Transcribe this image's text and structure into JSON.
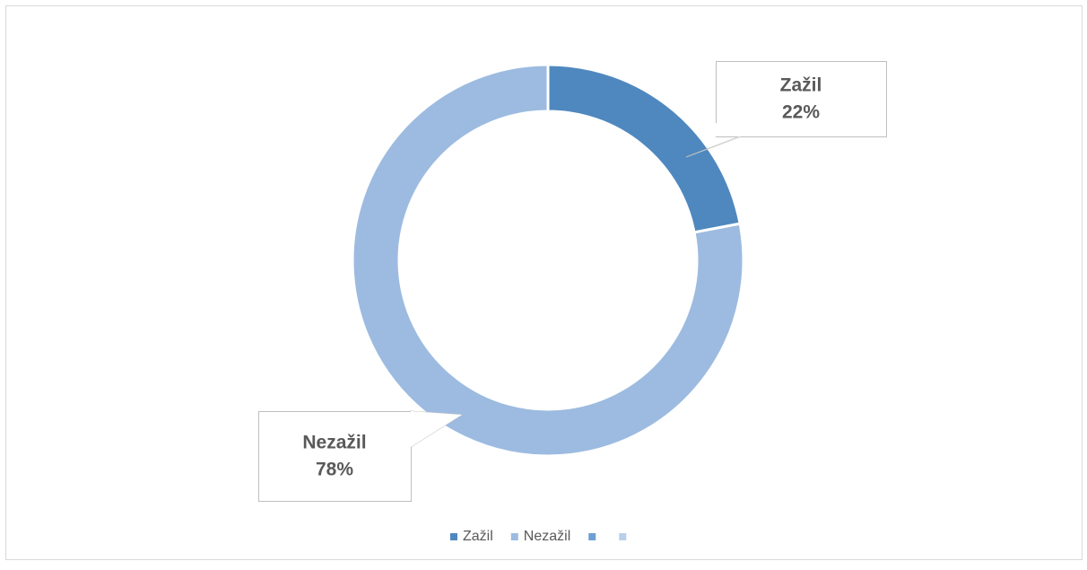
{
  "chart_data": {
    "type": "pie",
    "categories": [
      "Zažil",
      "Nezažil",
      null,
      null
    ],
    "values": [
      22,
      78,
      0,
      0
    ],
    "value_labels": [
      "22%",
      "78%",
      null,
      null
    ],
    "colors": [
      "#4f88bf",
      "#9dbbe0",
      "#6e9fd2",
      "#b8d0ea"
    ],
    "donut": true,
    "legend": "bottom"
  }
}
